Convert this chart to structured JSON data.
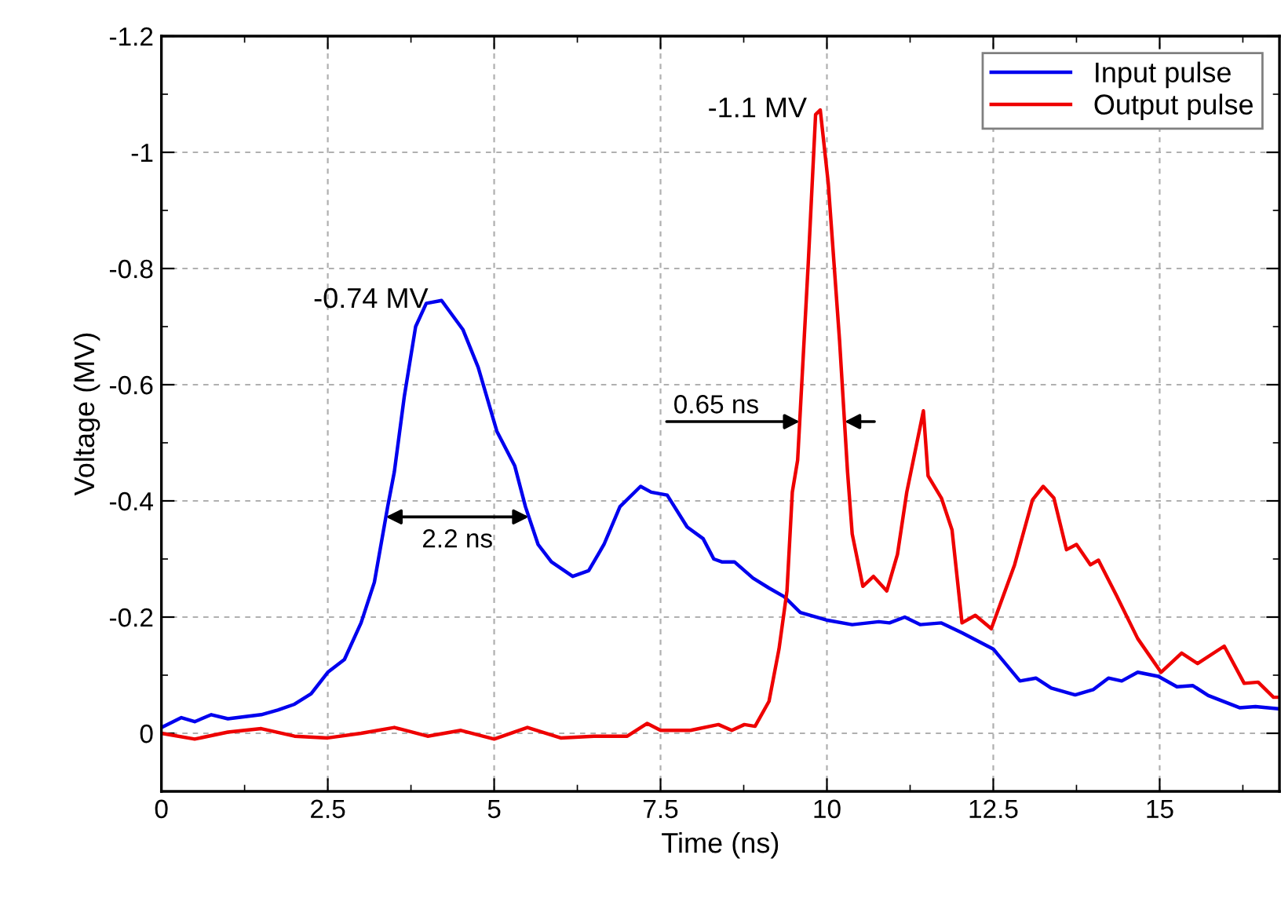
{
  "chart_data": {
    "type": "line",
    "xlabel": "Time (ns)",
    "ylabel": "Voltage (MV)",
    "xlim": [
      0,
      16.8
    ],
    "ylim": [
      0.1,
      -1.2
    ],
    "xticks": [
      0,
      2.5,
      5,
      7.5,
      10,
      12.5,
      15
    ],
    "yticks": [
      -1.2,
      -1,
      -0.8,
      -0.6,
      -0.4,
      -0.2,
      0
    ],
    "grid": true,
    "legend": "top right",
    "line_style": "solid",
    "marker": "none",
    "series": [
      {
        "name": "Input pulse",
        "color": "#0000ee",
        "x": [
          0,
          0.3,
          0.5,
          0.75,
          1,
          1.5,
          1.75,
          2,
          2.25,
          2.5,
          2.75,
          3,
          3.2,
          3.4,
          3.5,
          3.65,
          3.82,
          3.98,
          4.21,
          4.53,
          4.76,
          5.04,
          5.31,
          5.47,
          5.66,
          5.86,
          6.18,
          6.42,
          6.65,
          6.89,
          7.2,
          7.36,
          7.6,
          7.9,
          8.14,
          8.3,
          8.42,
          8.61,
          8.89,
          9.13,
          9.36,
          9.6,
          9.99,
          10.38,
          10.78,
          10.94,
          11.17,
          11.4,
          11.72,
          12.03,
          12.5,
          12.9,
          13.14,
          13.37,
          13.73,
          14.0,
          14.23,
          14.43,
          14.67,
          14.98,
          15.26,
          15.5,
          15.73,
          16.2,
          16.44,
          16.79
        ],
        "values": [
          -0.01,
          -0.027,
          -0.02,
          -0.032,
          -0.025,
          -0.032,
          -0.04,
          -0.05,
          -0.068,
          -0.105,
          -0.127,
          -0.19,
          -0.26,
          -0.39,
          -0.45,
          -0.58,
          -0.7,
          -0.74,
          -0.745,
          -0.695,
          -0.63,
          -0.52,
          -0.46,
          -0.39,
          -0.325,
          -0.295,
          -0.27,
          -0.28,
          -0.325,
          -0.39,
          -0.425,
          -0.415,
          -0.41,
          -0.355,
          -0.335,
          -0.3,
          -0.295,
          -0.295,
          -0.267,
          -0.25,
          -0.235,
          -0.208,
          -0.195,
          -0.187,
          -0.192,
          -0.19,
          -0.2,
          -0.187,
          -0.19,
          -0.173,
          -0.145,
          -0.09,
          -0.095,
          -0.078,
          -0.066,
          -0.075,
          -0.095,
          -0.09,
          -0.105,
          -0.098,
          -0.08,
          -0.082,
          -0.065,
          -0.044,
          -0.046,
          -0.042
        ]
      },
      {
        "name": "Output pulse",
        "color": "#ee0000",
        "x": [
          0,
          0.5,
          1,
          1.5,
          2,
          2.5,
          3,
          3.5,
          4,
          4.5,
          5,
          5.5,
          6,
          6.5,
          7,
          7.3,
          7.5,
          7.95,
          8.37,
          8.57,
          8.76,
          8.92,
          9.13,
          9.28,
          9.4,
          9.48,
          9.56,
          9.72,
          9.83,
          9.9,
          10.02,
          10.19,
          10.31,
          10.38,
          10.54,
          10.7,
          10.9,
          11.06,
          11.2,
          11.45,
          11.52,
          11.72,
          11.88,
          12.03,
          12.23,
          12.47,
          12.82,
          13.09,
          13.25,
          13.41,
          13.6,
          13.75,
          13.96,
          14.08,
          14.36,
          14.67,
          15.02,
          15.33,
          15.57,
          15.97,
          16.27,
          16.48,
          16.71,
          16.79
        ],
        "values": [
          0,
          0.01,
          -0.002,
          -0.008,
          0.005,
          0.008,
          0,
          -0.01,
          0.005,
          -0.005,
          0.01,
          -0.01,
          0.008,
          0.005,
          0.005,
          -0.017,
          -0.005,
          -0.005,
          -0.015,
          -0.005,
          -0.015,
          -0.012,
          -0.055,
          -0.145,
          -0.245,
          -0.415,
          -0.47,
          -0.81,
          -1.065,
          -1.073,
          -0.947,
          -0.676,
          -0.45,
          -0.343,
          -0.253,
          -0.27,
          -0.245,
          -0.308,
          -0.415,
          -0.555,
          -0.443,
          -0.405,
          -0.35,
          -0.19,
          -0.203,
          -0.18,
          -0.29,
          -0.402,
          -0.425,
          -0.405,
          -0.316,
          -0.325,
          -0.29,
          -0.298,
          -0.235,
          -0.163,
          -0.105,
          -0.138,
          -0.12,
          -0.15,
          -0.086,
          -0.088,
          -0.062,
          -0.062
        ]
      }
    ],
    "annotations": [
      {
        "text": "-0.74 MV",
        "x": 4.21,
        "y": -0.745
      },
      {
        "text": "-1.1 MV",
        "x": 9.9,
        "y": -1.073
      },
      "2.2 ns",
      "0.65 ns"
    ]
  }
}
